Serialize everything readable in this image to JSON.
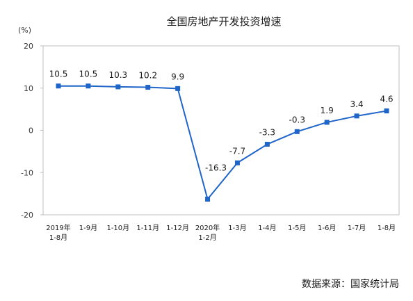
{
  "chart_data": {
    "type": "line",
    "title": "全国房地产开发投资增速",
    "unit_label": "(%)",
    "categories": [
      [
        "2019年",
        "1-8月"
      ],
      [
        "1-9月"
      ],
      [
        "1-10月"
      ],
      [
        "1-11月"
      ],
      [
        "1-12月"
      ],
      [
        "2020年",
        "1-2月"
      ],
      [
        "1-3月"
      ],
      [
        "1-4月"
      ],
      [
        "1-5月"
      ],
      [
        "1-6月"
      ],
      [
        "1-7月"
      ],
      [
        "1-8月"
      ]
    ],
    "series": [
      {
        "values": [
          10.5,
          10.5,
          10.3,
          10.2,
          9.9,
          -16.3,
          -7.7,
          -3.3,
          -0.3,
          1.9,
          3.4,
          4.6
        ],
        "labels": [
          "10.5",
          "10.5",
          "10.3",
          "10.2",
          "9.9",
          "-16.3",
          "-7.7",
          "-3.3",
          "-0.3",
          "1.9",
          "3.4",
          "4.6"
        ],
        "color": "#1f64c8"
      }
    ],
    "yticks": [
      20,
      10,
      0,
      -10,
      -20
    ],
    "ylim": [
      -20,
      20
    ],
    "grid": false,
    "legend": "none",
    "source": "数据来源：国家统计局"
  }
}
